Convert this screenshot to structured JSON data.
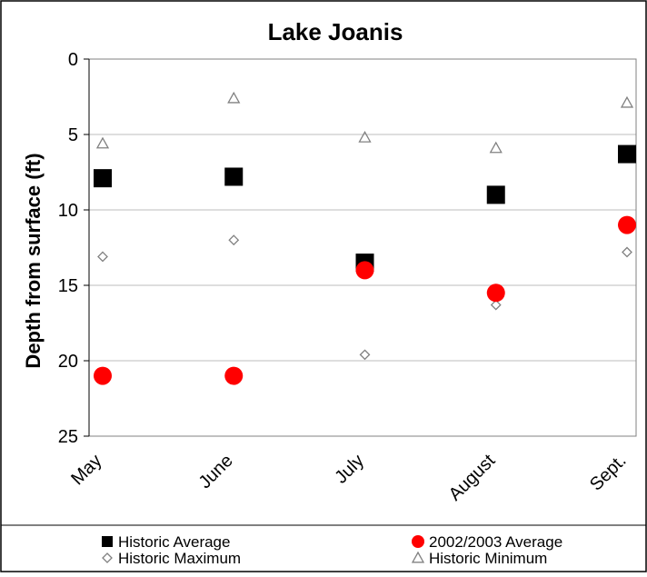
{
  "chart_data": {
    "type": "scatter",
    "title": "Lake Joanis",
    "xlabel": "",
    "ylabel": "Depth from surface (ft)",
    "categories": [
      "May",
      "June",
      "July",
      "August",
      "Sept."
    ],
    "y_ticks": [
      "0",
      "5",
      "10",
      "15",
      "20",
      "25"
    ],
    "ylim": [
      0,
      25
    ],
    "y_inverted": true,
    "grid": "horizontal",
    "legend_position": "bottom",
    "series": [
      {
        "name": "Historic Average",
        "marker": "square",
        "color": "#000000",
        "values": [
          7.9,
          7.8,
          13.5,
          9.0,
          6.3
        ]
      },
      {
        "name": "2002/2003 Average",
        "marker": "circle",
        "color": "#ff0000",
        "values": [
          21.0,
          21.0,
          14.0,
          15.5,
          11.0
        ]
      },
      {
        "name": "Historic Maximum",
        "marker": "diamond-open",
        "color": "#808080",
        "values": [
          13.1,
          12.0,
          19.6,
          16.3,
          12.8
        ]
      },
      {
        "name": "Historic Minimum",
        "marker": "triangle-open",
        "color": "#808080",
        "values": [
          5.6,
          2.6,
          5.2,
          5.9,
          2.9
        ]
      }
    ]
  }
}
